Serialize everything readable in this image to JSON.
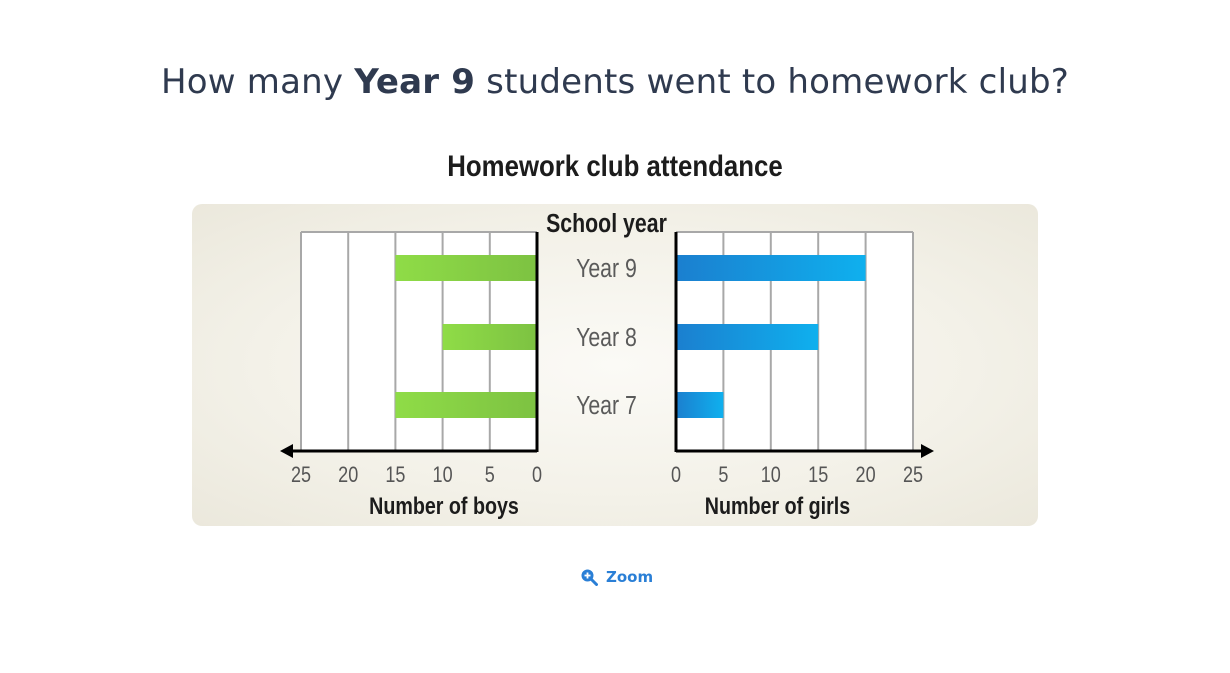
{
  "question": {
    "prefix": "How many ",
    "highlight": "Year 9",
    "suffix": " students went to homework club?"
  },
  "zoom": {
    "label": "Zoom",
    "icon": "zoom-in-icon"
  },
  "chart_data": {
    "type": "bar",
    "orientation": "horizontal",
    "layout": "back-to-back",
    "title": "Homework club attendance",
    "center_label": "School year",
    "categories": [
      "Year 9",
      "Year 8",
      "Year 7"
    ],
    "series": [
      {
        "name": "Number of boys",
        "side": "left",
        "values": [
          15,
          10,
          15
        ],
        "color": "#7dc242",
        "color_light": "#8fdc47",
        "xlabel": "Number of boys",
        "ticks": [
          25,
          20,
          15,
          10,
          5,
          0
        ]
      },
      {
        "name": "Number of girls",
        "side": "right",
        "values": [
          20,
          15,
          5
        ],
        "color": "#1b7fcf",
        "color_light": "#0fb0ee",
        "xlabel": "Number of girls",
        "ticks": [
          0,
          5,
          10,
          15,
          20,
          25
        ]
      }
    ],
    "xlim": [
      0,
      25
    ],
    "grid": true,
    "panel_color": "#f3f1e8"
  }
}
